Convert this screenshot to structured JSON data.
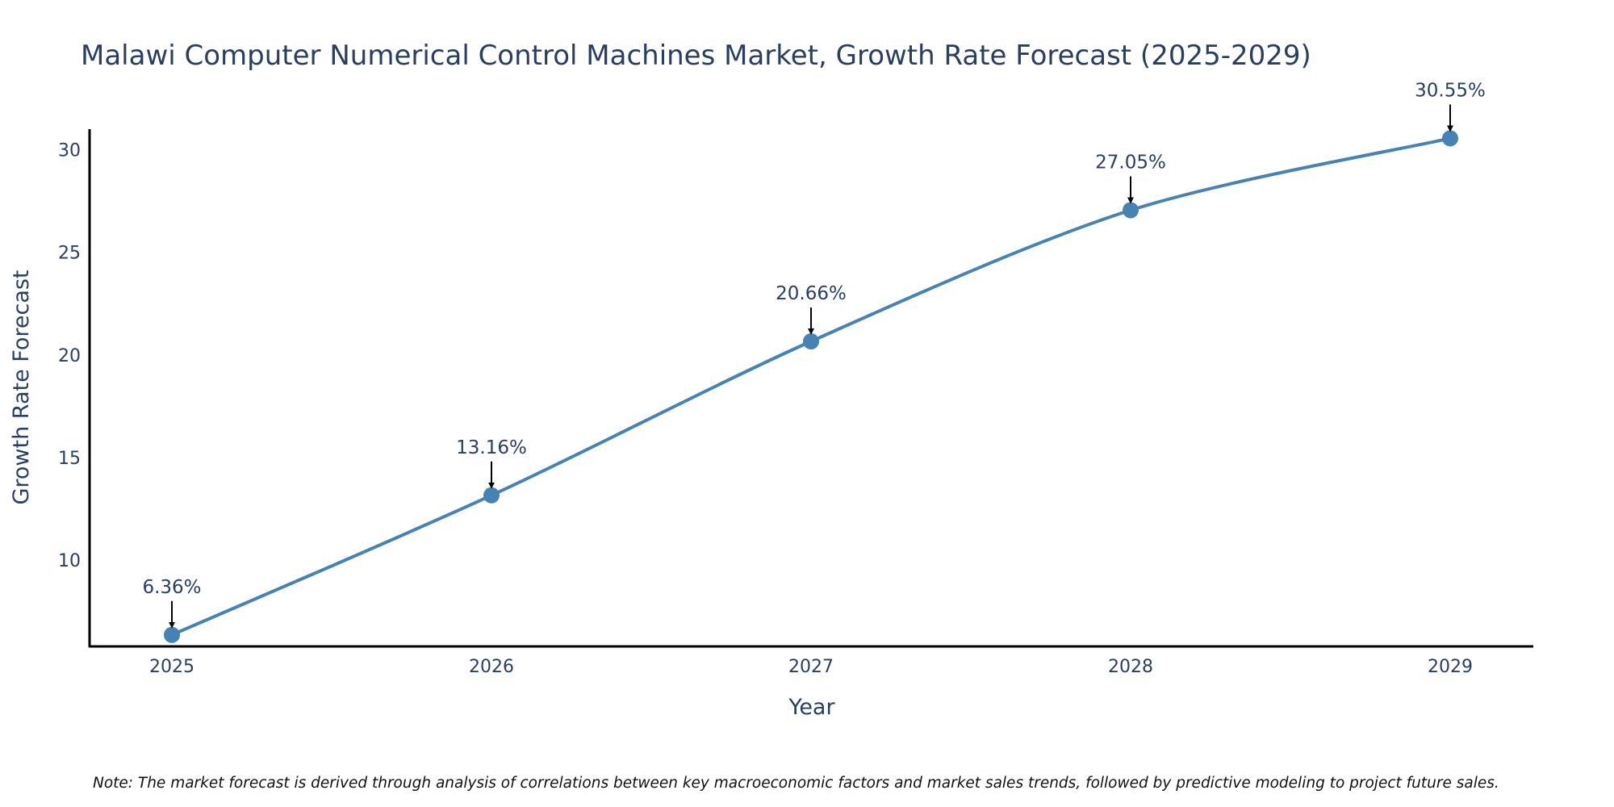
{
  "chart_data": {
    "type": "line",
    "title": "Malawi Computer Numerical Control Machines Market, Growth Rate Forecast (2025-2029)",
    "xlabel": "Year",
    "ylabel": "Growth Rate Forecast",
    "categories": [
      "2025",
      "2026",
      "2027",
      "2028",
      "2029"
    ],
    "series": [
      {
        "name": "Growth Rate Forecast",
        "values": [
          6.36,
          13.16,
          20.66,
          27.05,
          30.55
        ],
        "labels": [
          "6.36%",
          "13.16%",
          "20.66%",
          "27.05%",
          "30.55%"
        ]
      }
    ],
    "ylim": [
      5.8,
      31
    ],
    "yticks": [
      10,
      15,
      20,
      25,
      30
    ],
    "grid": false,
    "line_color": "#4682b4",
    "note": "Note: The market forecast is derived through analysis of correlations between key macroeconomic factors and market sales trends, followed by predictive modeling to project future sales."
  }
}
